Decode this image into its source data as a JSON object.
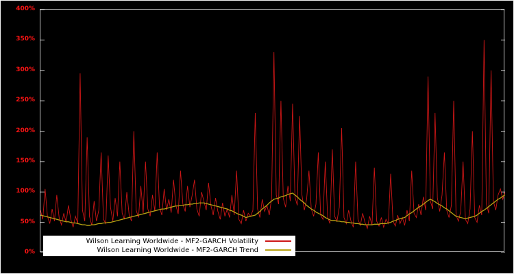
{
  "page": {
    "background": "#000000",
    "outer_border_color": "#f2f2f2"
  },
  "chart_data": {
    "type": "line",
    "title": "",
    "xlabel": "",
    "ylabel": "",
    "unit": "percent",
    "ylim": [
      0,
      400
    ],
    "grid": false,
    "frame_color": "#c8c8c8",
    "axis_label_color": "#ff1414",
    "legend_position": "bottom-left",
    "ytick_values": [
      0,
      50,
      100,
      150,
      200,
      250,
      300,
      350,
      400
    ],
    "ytick_labels": [
      "0%",
      "50%",
      "100%",
      "150%",
      "200%",
      "250%",
      "300%",
      "350%",
      "400%"
    ],
    "series": [
      {
        "name": "Wilson Learning Worldwide - MF2-GARCH Volatility",
        "color": "#cc1616",
        "stroke_width": 0.9,
        "values": [
          70,
          55,
          105,
          60,
          48,
          72,
          52,
          95,
          58,
          46,
          65,
          50,
          78,
          55,
          42,
          60,
          48,
          295,
          70,
          52,
          190,
          60,
          45,
          85,
          52,
          70,
          165,
          55,
          48,
          160,
          75,
          52,
          90,
          60,
          150,
          65,
          55,
          100,
          62,
          52,
          200,
          70,
          58,
          110,
          65,
          150,
          72,
          60,
          95,
          68,
          165,
          75,
          62,
          105,
          70,
          88,
          66,
          120,
          78,
          64,
          135,
          80,
          68,
          110,
          75,
          95,
          120,
          72,
          60,
          100,
          85,
          70,
          115,
          78,
          62,
          90,
          68,
          55,
          82,
          60,
          72,
          58,
          95,
          62,
          135,
          55,
          48,
          70,
          52,
          65,
          60,
          70,
          230,
          72,
          58,
          88,
          68,
          78,
          62,
          90,
          330,
          95,
          80,
          250,
          90,
          75,
          110,
          85,
          245,
          92,
          78,
          225,
          95,
          70,
          88,
          135,
          72,
          60,
          80,
          165,
          62,
          55,
          150,
          58,
          48,
          170,
          60,
          52,
          75,
          205,
          58,
          48,
          70,
          52,
          42,
          150,
          55,
          45,
          65,
          50,
          40,
          60,
          45,
          140,
          52,
          44,
          58,
          42,
          55,
          48,
          130,
          52,
          44,
          62,
          48,
          58,
          45,
          70,
          52,
          135,
          65,
          58,
          80,
          62,
          92,
          70,
          290,
          85,
          72,
          230,
          90,
          68,
          95,
          165,
          70,
          58,
          78,
          250,
          62,
          52,
          68,
          150,
          55,
          48,
          72,
          200,
          58,
          50,
          78,
          62,
          350,
          80,
          65,
          300,
          85,
          70,
          95,
          105,
          88,
          100
        ]
      },
      {
        "name": "Wilson Learning Worldwide - MF2-GARCH Trend",
        "color": "#b8a312",
        "stroke_width": 1.3,
        "values": [
          62,
          61,
          60,
          59,
          58,
          57,
          56,
          55,
          54,
          53,
          52,
          51,
          51,
          50,
          49,
          49,
          48,
          47,
          46,
          46,
          45,
          45,
          46,
          46,
          47,
          48,
          48,
          49,
          49,
          50,
          50,
          51,
          52,
          53,
          54,
          55,
          56,
          57,
          58,
          59,
          60,
          61,
          62,
          63,
          64,
          65,
          66,
          67,
          68,
          69,
          70,
          71,
          72,
          72,
          73,
          74,
          75,
          76,
          77,
          77,
          78,
          78,
          79,
          79,
          80,
          80,
          81,
          81,
          82,
          82,
          82,
          81,
          80,
          79,
          78,
          77,
          76,
          75,
          74,
          73,
          72,
          70,
          69,
          67,
          65,
          63,
          62,
          60,
          58,
          59,
          60,
          61,
          62,
          65,
          68,
          72,
          75,
          78,
          82,
          85,
          88,
          89,
          90,
          92,
          93,
          94,
          96,
          97,
          98,
          95,
          92,
          88,
          85,
          82,
          78,
          75,
          72,
          70,
          67,
          65,
          63,
          61,
          58,
          56,
          54,
          53,
          53,
          52,
          52,
          51,
          51,
          50,
          50,
          49,
          49,
          48,
          48,
          47,
          47,
          46,
          46,
          46,
          46,
          47,
          47,
          47,
          48,
          48,
          48,
          49,
          50,
          52,
          53,
          55,
          56,
          57,
          58,
          61,
          64,
          66,
          69,
          72,
          75,
          77,
          80,
          83,
          86,
          88,
          86,
          84,
          81,
          79,
          77,
          74,
          72,
          69,
          66,
          63,
          60,
          59,
          58,
          57,
          56,
          57,
          58,
          59,
          60,
          62,
          65,
          68,
          70,
          73,
          76,
          79,
          82,
          85,
          88,
          90,
          93,
          95
        ]
      }
    ]
  }
}
